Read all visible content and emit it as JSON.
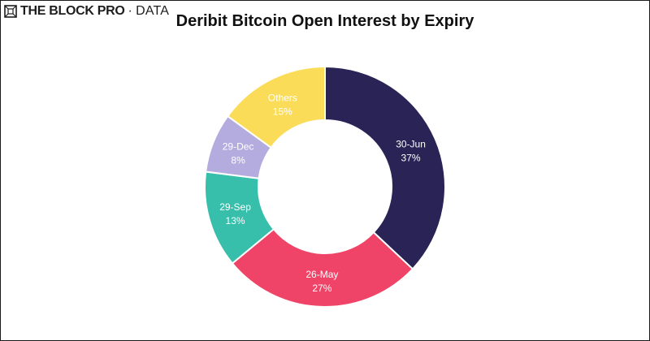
{
  "brand": {
    "name": "THE BLOCK PRO",
    "separator": "·",
    "product": "DATA"
  },
  "chart_data": {
    "type": "pie",
    "donut": true,
    "title": "Deribit Bitcoin Open Interest by Expiry",
    "slices": [
      {
        "label": "30-Jun",
        "value": 37,
        "value_label": "37%",
        "color": "#2a2356"
      },
      {
        "label": "26-May",
        "value": 27,
        "value_label": "27%",
        "color": "#ef4468"
      },
      {
        "label": "29-Sep",
        "value": 13,
        "value_label": "13%",
        "color": "#37bfab"
      },
      {
        "label": "29-Dec",
        "value": 8,
        "value_label": "8%",
        "color": "#b4acde"
      },
      {
        "label": "Others",
        "value": 15,
        "value_label": "15%",
        "color": "#fbdc58"
      }
    ]
  }
}
